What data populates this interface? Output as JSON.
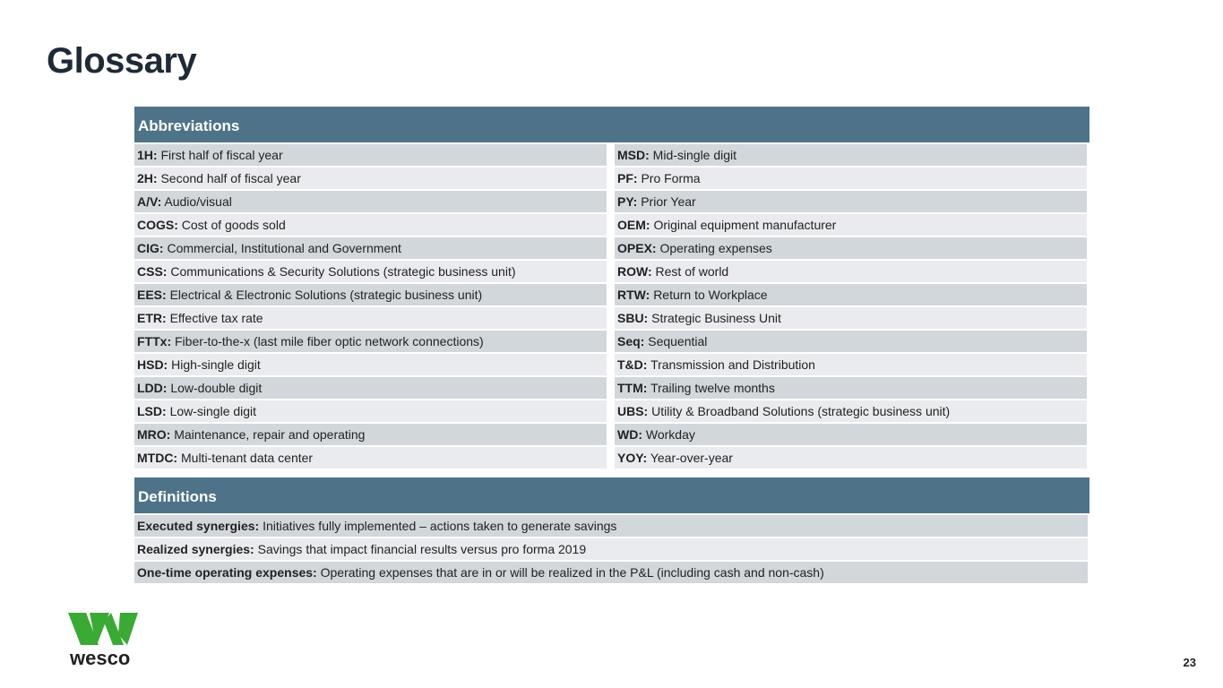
{
  "title": "Glossary",
  "abbreviations": {
    "header": "Abbreviations",
    "left": [
      {
        "term": "1H:",
        "desc": "First half of fiscal year"
      },
      {
        "term": "2H:",
        "desc": "Second half of fiscal year"
      },
      {
        "term": "A/V:",
        "desc": "Audio/visual"
      },
      {
        "term": "COGS:",
        "desc": "Cost of goods sold"
      },
      {
        "term": "CIG:",
        "desc": "Commercial, Institutional and Government"
      },
      {
        "term": "CSS:",
        "desc": "Communications & Security Solutions (strategic business unit)"
      },
      {
        "term": "EES:",
        "desc": "Electrical & Electronic Solutions (strategic business unit)"
      },
      {
        "term": "ETR:",
        "desc": "Effective tax rate"
      },
      {
        "term": "FTTx:",
        "desc": "Fiber-to-the-x (last mile fiber optic network connections)"
      },
      {
        "term": "HSD:",
        "desc": "High-single digit"
      },
      {
        "term": "LDD:",
        "desc": "Low-double digit"
      },
      {
        "term": "LSD:",
        "desc": "Low-single digit"
      },
      {
        "term": "MRO:",
        "desc": "Maintenance, repair and operating"
      },
      {
        "term": "MTDC:",
        "desc": "Multi-tenant data center"
      }
    ],
    "right": [
      {
        "term": "MSD:",
        "desc": "Mid-single digit"
      },
      {
        "term": "PF:",
        "desc": "Pro Forma"
      },
      {
        "term": "PY:",
        "desc": "Prior Year"
      },
      {
        "term": "OEM:",
        "desc": "Original equipment manufacturer"
      },
      {
        "term": "OPEX:",
        "desc": "Operating expenses"
      },
      {
        "term": "ROW:",
        "desc": "Rest of world"
      },
      {
        "term": "RTW:",
        "desc": "Return to Workplace"
      },
      {
        "term": "SBU:",
        "desc": "Strategic Business Unit"
      },
      {
        "term": "Seq:",
        "desc": "Sequential"
      },
      {
        "term": "T&D:",
        "desc": "Transmission and Distribution"
      },
      {
        "term": "TTM:",
        "desc": "Trailing twelve months"
      },
      {
        "term": "UBS:",
        "desc": "Utility & Broadband Solutions (strategic business unit)"
      },
      {
        "term": "WD:",
        "desc": "Workday"
      },
      {
        "term": "YOY:",
        "desc": "Year-over-year"
      }
    ]
  },
  "definitions": {
    "header": "Definitions",
    "items": [
      {
        "term": "Executed synergies:",
        "desc": "Initiatives fully implemented – actions taken to generate savings"
      },
      {
        "term": "Realized synergies:",
        "desc": "Savings that impact financial results versus pro forma 2019"
      },
      {
        "term": "One-time operating expenses:",
        "desc": "Operating expenses that are in or will be realized in the P&L (including cash and non-cash)"
      }
    ]
  },
  "logo": {
    "text": "wesco",
    "color": "#3aaa35"
  },
  "page_number": "23",
  "colors": {
    "header": "#4e7389",
    "row_dark": "#d2d7dc",
    "row_light": "#e9ebee"
  }
}
